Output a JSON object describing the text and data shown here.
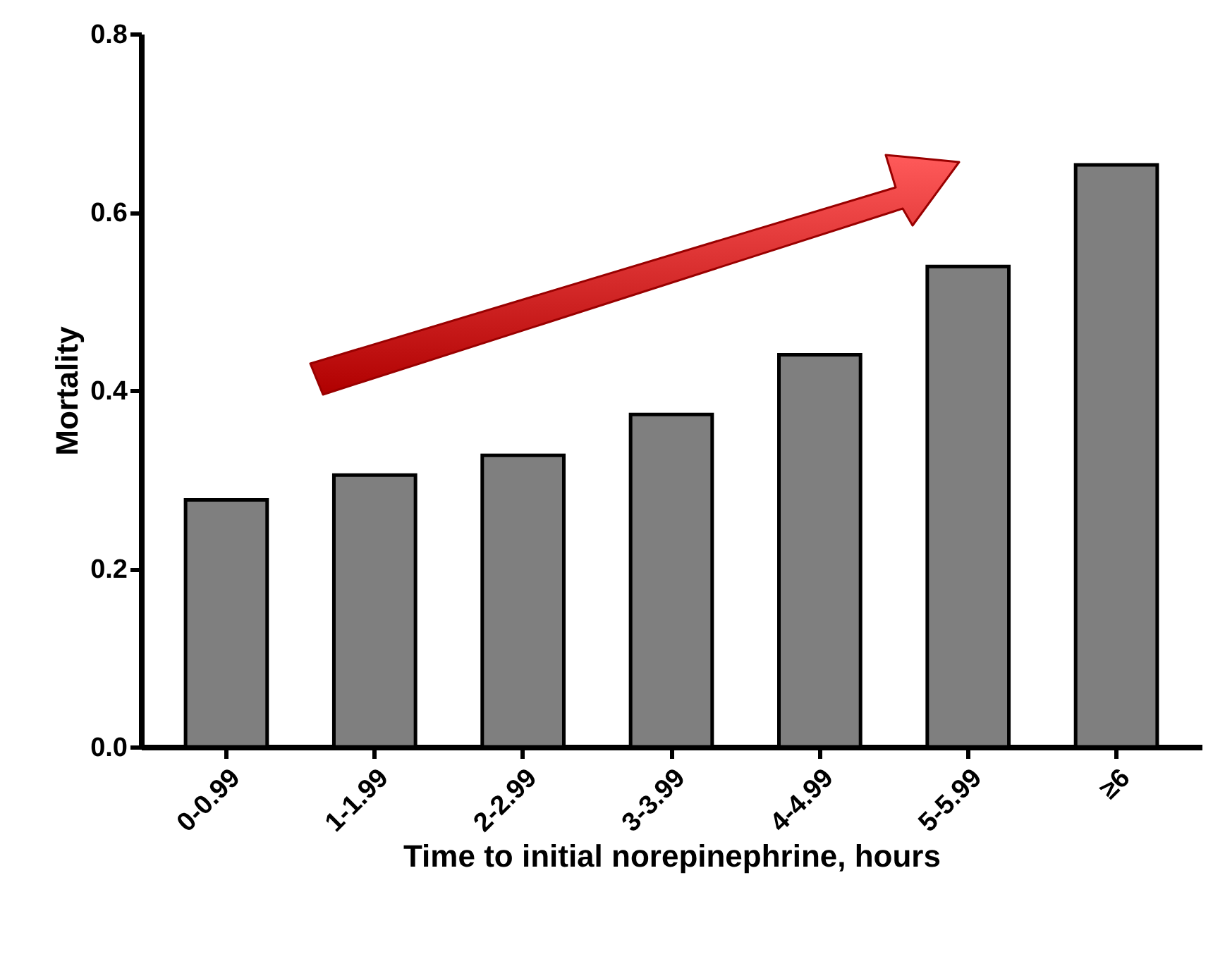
{
  "chart_data": {
    "type": "bar",
    "xlabel": "Time to initial norepinephrine, hours",
    "ylabel": "Mortality",
    "categories": [
      "0-0.99",
      "1-1.99",
      "2-2.99",
      "3-3.99",
      "4-4.99",
      "5-5.99",
      "≥6"
    ],
    "values": [
      0.277,
      0.305,
      0.327,
      0.373,
      0.44,
      0.539,
      0.653
    ],
    "color": "#7f7f7f",
    "ylim": [
      0,
      0.8
    ],
    "yticks": [
      {
        "value": 0,
        "label": "0.0"
      },
      {
        "value": 0.2,
        "label": "0.2"
      },
      {
        "value": 0.4,
        "label": "0.4"
      },
      {
        "value": 0.6,
        "label": "0.6"
      },
      {
        "value": 0.8,
        "label": "0.8"
      }
    ],
    "grid": false
  }
}
